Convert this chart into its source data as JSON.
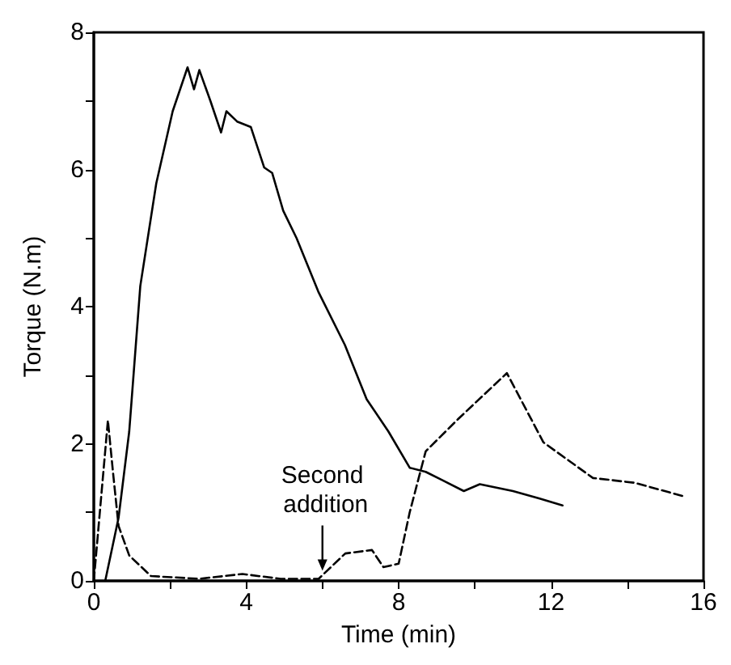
{
  "chart_data": {
    "type": "line",
    "xlabel": "Time (min)",
    "ylabel": "Torque (N.m)",
    "xlim": [
      0,
      16
    ],
    "ylim": [
      0,
      8
    ],
    "xticks": [
      0,
      {
        "value": 2,
        "label": null
      },
      4,
      {
        "value": 6,
        "label": null
      },
      8,
      {
        "value": 10,
        "label": null
      },
      12,
      {
        "value": 14,
        "label": null
      },
      16
    ],
    "yticks": [
      0,
      {
        "value": 1,
        "label": null
      },
      2,
      {
        "value": 3,
        "label": null
      },
      4,
      {
        "value": 5,
        "label": null
      },
      6,
      {
        "value": 7,
        "label": null
      },
      8
    ],
    "grid": false,
    "marker": "none",
    "annotations": [
      {
        "text": "Second addition",
        "x": 6,
        "y": 0.1
      }
    ],
    "series": [
      {
        "color": "#000000",
        "line_style": "solid",
        "x": [
          0.3,
          0.65,
          0.93,
          1.22,
          1.64,
          2.07,
          2.46,
          2.63,
          2.77,
          3.06,
          3.34,
          3.48,
          3.76,
          4.12,
          4.47,
          4.68,
          4.97,
          5.32,
          5.89,
          6.59,
          7.16,
          7.73,
          8.29,
          8.71,
          9.14,
          9.71,
          10.13,
          11.0,
          11.7,
          12.3
        ],
        "values": [
          0,
          0.92,
          2.18,
          4.3,
          5.8,
          6.85,
          7.49,
          7.17,
          7.45,
          7.0,
          6.54,
          6.85,
          6.7,
          6.62,
          6.03,
          5.95,
          5.4,
          5.0,
          4.22,
          3.44,
          2.65,
          2.18,
          1.65,
          1.59,
          1.47,
          1.31,
          1.41,
          1.31,
          1.2,
          1.1
        ]
      },
      {
        "color": "#000000",
        "line_style": "dashed",
        "x": [
          0,
          0.37,
          0.51,
          0.65,
          0.93,
          1.5,
          2.77,
          3.9,
          4.9,
          5.9,
          6.6,
          7.3,
          7.6,
          8.0,
          8.29,
          8.71,
          9.56,
          10.84,
          11.8,
          13.1,
          14.2,
          15.5
        ],
        "values": [
          0,
          2.34,
          1.55,
          0.8,
          0.37,
          0.07,
          0.03,
          0.1,
          0.03,
          0.03,
          0.4,
          0.45,
          0.2,
          0.25,
          1.0,
          1.89,
          2.36,
          3.03,
          2.02,
          1.5,
          1.43,
          1.23
        ]
      }
    ]
  }
}
